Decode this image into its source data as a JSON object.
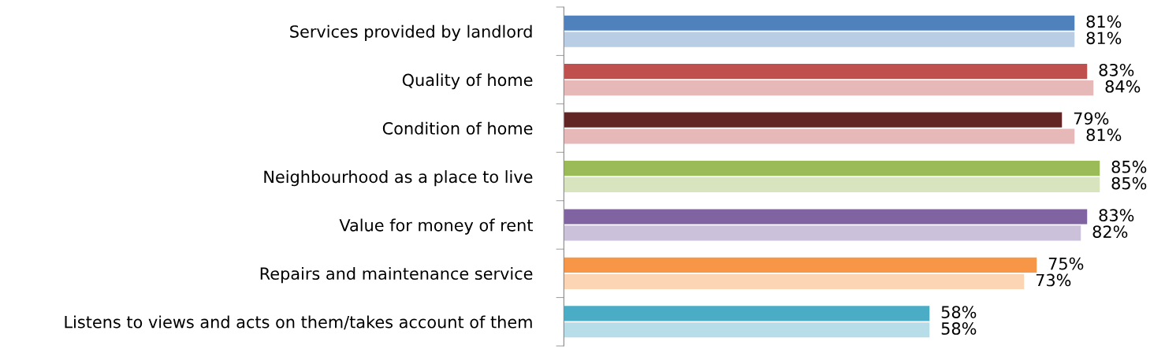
{
  "chart_data": {
    "type": "bar",
    "orientation": "horizontal",
    "categories": [
      "Services provided by landlord",
      "Quality of home",
      "Condition of home",
      "Neighbourhood as a place to live",
      "Value for money of rent",
      "Repairs and maintenance service",
      "Listens to views and acts on them/takes account of them"
    ],
    "series": [
      {
        "colors": [
          "#4f81bd",
          "#c0504d",
          "#632523",
          "#9bbb59",
          "#8064a2",
          "#f79646",
          "#4bacc6"
        ],
        "values": [
          81,
          83,
          79,
          85,
          83,
          75,
          58
        ],
        "value_labels": [
          "81%",
          "83%",
          "79%",
          "85%",
          "83%",
          "75%",
          "58%"
        ]
      },
      {
        "colors": [
          "#b9cde5",
          "#e6b9b8",
          "#e6b9b8",
          "#d7e4bd",
          "#ccc1da",
          "#fcd5b5",
          "#b7dee8"
        ],
        "values": [
          81,
          84,
          81,
          85,
          82,
          73,
          58
        ],
        "value_labels": [
          "81%",
          "84%",
          "81%",
          "85%",
          "82%",
          "73%",
          "58%"
        ]
      }
    ],
    "legend": false,
    "grid": false
  }
}
